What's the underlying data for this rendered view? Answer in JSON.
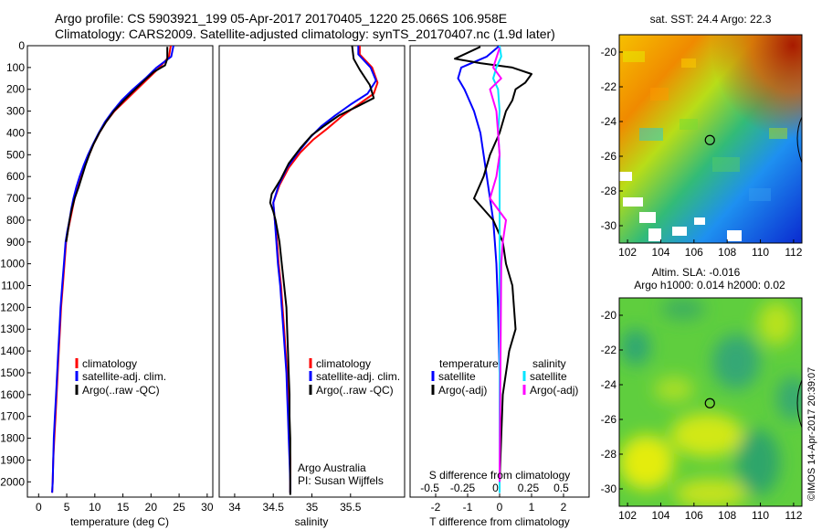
{
  "header": {
    "line1": "Argo profile: CS 5903921_199 05-Apr-2017 20170405_1220 25.066S 106.958E",
    "line2": "Climatology: CARS2009. Satellite-adjusted climatology: synTS_20170407.nc (1.9d later)"
  },
  "colors": {
    "climatology": "#ff0000",
    "satellite": "#0000ff",
    "argo": "#000000",
    "sal_satellite": "#00e5ff",
    "sal_argo": "#ff00ff"
  },
  "chart_data": [
    {
      "type": "line",
      "xlabel": "temperature (deg C)",
      "xlim": [
        -2,
        31
      ],
      "ylim": [
        2070,
        0
      ],
      "xticks": [
        0,
        5,
        10,
        15,
        20,
        25,
        30
      ],
      "yticks": [
        0,
        100,
        200,
        300,
        400,
        500,
        600,
        700,
        800,
        900,
        1000,
        1100,
        1200,
        1300,
        1400,
        1500,
        1600,
        1700,
        1800,
        1900,
        2000
      ],
      "legend": [
        "climatology",
        "satellite-adj. clim.",
        "Argo(..raw -QC)"
      ],
      "series": [
        {
          "name": "climatology",
          "points": [
            [
              23.5,
              0
            ],
            [
              23.2,
              50
            ],
            [
              21.5,
              100
            ],
            [
              19.5,
              150
            ],
            [
              17.5,
              200
            ],
            [
              15.5,
              250
            ],
            [
              13.5,
              300
            ],
            [
              12,
              350
            ],
            [
              10.8,
              400
            ],
            [
              9.8,
              450
            ],
            [
              9,
              500
            ],
            [
              8.2,
              550
            ],
            [
              7.6,
              600
            ],
            [
              7,
              650
            ],
            [
              6.4,
              700
            ],
            [
              6,
              750
            ],
            [
              5.6,
              800
            ],
            [
              5.2,
              850
            ],
            [
              4.9,
              900
            ],
            [
              4.6,
              1000
            ],
            [
              4.3,
              1100
            ],
            [
              4,
              1200
            ],
            [
              3.8,
              1300
            ],
            [
              3.6,
              1400
            ],
            [
              3.4,
              1500
            ],
            [
              3.2,
              1600
            ],
            [
              3,
              1700
            ],
            [
              2.8,
              1800
            ],
            [
              2.6,
              1900
            ],
            [
              2.5,
              2000
            ],
            [
              2.4,
              2050
            ]
          ]
        },
        {
          "name": "satellite-adj. clim.",
          "points": [
            [
              24,
              0
            ],
            [
              23.6,
              50
            ],
            [
              21,
              100
            ],
            [
              19,
              150
            ],
            [
              16.8,
              200
            ],
            [
              14.8,
              250
            ],
            [
              13.2,
              300
            ],
            [
              11.8,
              350
            ],
            [
              10.7,
              400
            ],
            [
              9.7,
              450
            ],
            [
              8.8,
              500
            ],
            [
              8,
              550
            ],
            [
              7.3,
              600
            ],
            [
              6.7,
              650
            ],
            [
              6.2,
              700
            ],
            [
              5.8,
              750
            ],
            [
              5.5,
              800
            ],
            [
              5.1,
              850
            ],
            [
              4.8,
              900
            ],
            [
              4.5,
              1000
            ],
            [
              4.2,
              1100
            ],
            [
              3.9,
              1200
            ],
            [
              3.7,
              1300
            ],
            [
              3.5,
              1400
            ],
            [
              3.3,
              1500
            ],
            [
              3.1,
              1600
            ],
            [
              2.9,
              1700
            ],
            [
              2.7,
              1800
            ],
            [
              2.6,
              1900
            ],
            [
              2.5,
              2000
            ],
            [
              2.4,
              2050
            ]
          ]
        },
        {
          "name": "Argo(..raw -QC)",
          "points": [
            [
              22.9,
              5
            ],
            [
              22.9,
              60
            ],
            [
              22.5,
              90
            ],
            [
              20.5,
              120
            ],
            [
              18.8,
              160
            ],
            [
              17.2,
              200
            ],
            [
              15.2,
              250
            ],
            [
              13.4,
              300
            ],
            [
              12,
              350
            ],
            [
              10.8,
              400
            ],
            [
              9.8,
              450
            ],
            [
              9,
              500
            ],
            [
              8.3,
              550
            ],
            [
              7.7,
              600
            ],
            [
              7.1,
              650
            ],
            [
              6.4,
              700
            ],
            [
              5.9,
              750
            ],
            [
              5.5,
              800
            ],
            [
              5.2,
              850
            ],
            [
              4.9,
              900
            ]
          ]
        }
      ]
    },
    {
      "type": "line",
      "xlabel": "salinity",
      "xlim": [
        33.8,
        36.2
      ],
      "ylim": [
        2070,
        0
      ],
      "xticks": [
        34,
        34.5,
        35,
        35.5
      ],
      "legend": [
        "climatology",
        "satellite-adj. clim.",
        "Argo(..raw -QC)"
      ],
      "annotation": [
        "Argo Australia",
        "PI: Susan Wijffels"
      ],
      "series": [
        {
          "name": "climatology",
          "points": [
            [
              35.62,
              0
            ],
            [
              35.62,
              40
            ],
            [
              35.78,
              100
            ],
            [
              35.85,
              170
            ],
            [
              35.8,
              220
            ],
            [
              35.6,
              270
            ],
            [
              35.4,
              320
            ],
            [
              35.2,
              380
            ],
            [
              35.02,
              430
            ],
            [
              34.85,
              490
            ],
            [
              34.7,
              560
            ],
            [
              34.58,
              640
            ],
            [
              34.5,
              720
            ],
            [
              34.52,
              800
            ],
            [
              34.55,
              900
            ],
            [
              34.57,
              1000
            ],
            [
              34.6,
              1100
            ],
            [
              34.62,
              1200
            ],
            [
              34.64,
              1300
            ],
            [
              34.66,
              1400
            ],
            [
              34.68,
              1500
            ],
            [
              34.69,
              1600
            ],
            [
              34.7,
              1700
            ],
            [
              34.71,
              1800
            ],
            [
              34.72,
              1900
            ],
            [
              34.72,
              2000
            ],
            [
              34.72,
              2050
            ]
          ]
        },
        {
          "name": "satellite-adj. clim.",
          "points": [
            [
              35.6,
              0
            ],
            [
              35.6,
              40
            ],
            [
              35.76,
              100
            ],
            [
              35.83,
              160
            ],
            [
              35.72,
              220
            ],
            [
              35.5,
              270
            ],
            [
              35.3,
              320
            ],
            [
              35.12,
              370
            ],
            [
              34.98,
              420
            ],
            [
              34.82,
              490
            ],
            [
              34.68,
              560
            ],
            [
              34.57,
              640
            ],
            [
              34.5,
              720
            ],
            [
              34.52,
              800
            ],
            [
              34.54,
              900
            ],
            [
              34.56,
              1000
            ],
            [
              34.59,
              1100
            ],
            [
              34.61,
              1200
            ],
            [
              34.63,
              1300
            ],
            [
              34.65,
              1400
            ],
            [
              34.67,
              1500
            ],
            [
              34.68,
              1600
            ],
            [
              34.69,
              1700
            ],
            [
              34.7,
              1800
            ],
            [
              34.71,
              1900
            ],
            [
              34.72,
              2000
            ],
            [
              34.72,
              2050
            ]
          ]
        },
        {
          "name": "Argo(..raw -QC)",
          "points": [
            [
              35.52,
              0
            ],
            [
              35.54,
              60
            ],
            [
              35.62,
              110
            ],
            [
              35.75,
              180
            ],
            [
              35.8,
              240
            ],
            [
              35.58,
              280
            ],
            [
              35.35,
              320
            ],
            [
              35.15,
              370
            ],
            [
              35,
              410
            ],
            [
              34.85,
              470
            ],
            [
              34.7,
              540
            ],
            [
              34.6,
              610
            ],
            [
              34.48,
              680
            ],
            [
              34.46,
              720
            ],
            [
              34.5,
              760
            ],
            [
              34.53,
              800
            ],
            [
              34.56,
              860
            ],
            [
              34.58,
              900
            ],
            [
              34.61,
              1000
            ],
            [
              34.64,
              1100
            ],
            [
              34.67,
              1200
            ],
            [
              34.68,
              1300
            ],
            [
              34.69,
              1400
            ],
            [
              34.7,
              1500
            ],
            [
              34.71,
              1600
            ],
            [
              34.71,
              1700
            ],
            [
              34.72,
              1800
            ],
            [
              34.72,
              1900
            ],
            [
              34.72,
              2000
            ],
            [
              34.72,
              2060
            ]
          ]
        }
      ]
    },
    {
      "type": "line",
      "xlabel": "T difference from climatology",
      "secondary_xlabel": "S difference from climatology",
      "xlim": [
        -2.8,
        2.8
      ],
      "ylim": [
        2070,
        0
      ],
      "xticks": [
        -2,
        -1,
        0,
        1,
        2
      ],
      "secondary_xticks": [
        "-0.5",
        "-0.25",
        "0",
        "0.25",
        "0.5"
      ],
      "legend_headers": [
        "temperature",
        "salinity"
      ],
      "legend": [
        "satellite",
        "Argo(-adj)",
        "satellite",
        "Argo(-adj)"
      ],
      "series": [
        {
          "name": "satellite",
          "points": [
            [
              0,
              0
            ],
            [
              -0.4,
              50
            ],
            [
              -1.2,
              100
            ],
            [
              -1.3,
              150
            ],
            [
              -1.1,
              200
            ],
            [
              -0.8,
              300
            ],
            [
              -0.6,
              400
            ],
            [
              -0.5,
              500
            ],
            [
              -0.4,
              600
            ],
            [
              -0.3,
              700
            ],
            [
              -0.2,
              800
            ],
            [
              -0.15,
              900
            ],
            [
              -0.1,
              1000
            ],
            [
              -0.05,
              1200
            ],
            [
              0,
              1500
            ],
            [
              0,
              2050
            ]
          ]
        },
        {
          "name": "Argo(-adj)",
          "points": [
            [
              -0.6,
              5
            ],
            [
              -1.4,
              60
            ],
            [
              -0.6,
              80
            ],
            [
              0.4,
              100
            ],
            [
              1.0,
              130
            ],
            [
              0.8,
              170
            ],
            [
              0.5,
              200
            ],
            [
              0.4,
              250
            ],
            [
              0.2,
              300
            ],
            [
              0,
              400
            ],
            [
              -0.3,
              500
            ],
            [
              -0.5,
              600
            ],
            [
              -0.8,
              700
            ],
            [
              -0.5,
              750
            ],
            [
              -0.2,
              800
            ],
            [
              0.1,
              900
            ],
            [
              0.2,
              1000
            ],
            [
              0.4,
              1100
            ],
            [
              0.5,
              1300
            ],
            [
              0.3,
              1400
            ],
            [
              0.1,
              1600
            ],
            [
              0,
              2000
            ]
          ]
        },
        {
          "name": "satellite",
          "points": [
            [
              0,
              0
            ],
            [
              0.05,
              50
            ],
            [
              -0.1,
              100
            ],
            [
              -0.2,
              150
            ],
            [
              -0.05,
              200
            ],
            [
              0,
              300
            ],
            [
              -0.05,
              400
            ],
            [
              0,
              500
            ],
            [
              0,
              2050
            ]
          ]
        },
        {
          "name": "Argo(-adj)",
          "points": [
            [
              0,
              10
            ],
            [
              -0.2,
              100
            ],
            [
              0.05,
              150
            ],
            [
              -0.3,
              200
            ],
            [
              -0.1,
              300
            ],
            [
              -0.05,
              400
            ],
            [
              0,
              500
            ],
            [
              -0.1,
              600
            ],
            [
              -0.3,
              700
            ],
            [
              0.2,
              800
            ],
            [
              0.1,
              900
            ],
            [
              0.05,
              1000
            ],
            [
              0,
              2000
            ]
          ]
        }
      ]
    },
    {
      "type": "heatmap",
      "title": "sat. SST: 24.4  Argo: 22.3",
      "xlim": [
        101.5,
        112.5
      ],
      "ylim": [
        -31,
        -19
      ],
      "xticks": [
        102,
        104,
        106,
        108,
        110,
        112
      ],
      "yticks": [
        -20,
        -22,
        -24,
        -26,
        -28,
        -30
      ],
      "marker": [
        106.958,
        -25.066
      ]
    },
    {
      "type": "heatmap",
      "title": "Altim. SLA: -0.016",
      "subtitle": "Argo h1000: 0.014 h2000: 0.02",
      "xlim": [
        101.5,
        112.5
      ],
      "ylim": [
        -31,
        -19
      ],
      "xticks": [
        102,
        104,
        106,
        108,
        110,
        112
      ],
      "yticks": [
        -20,
        -22,
        -24,
        -26,
        -28,
        -30
      ],
      "marker": [
        106.958,
        -25.066
      ]
    }
  ],
  "footer": {
    "stamp": "©IMOS 14-Apr-2017 20:39:07"
  }
}
